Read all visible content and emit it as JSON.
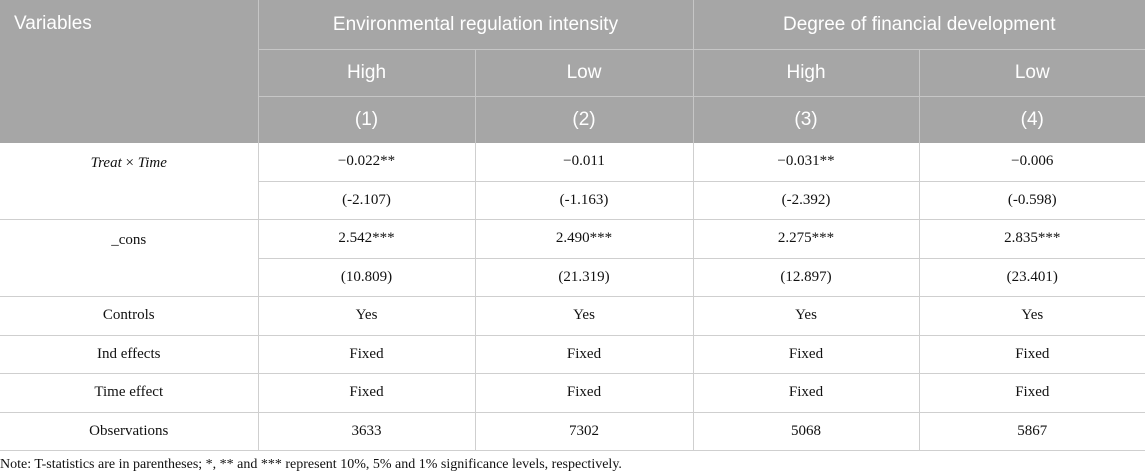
{
  "header": {
    "variables": "Variables",
    "group1": "Environmental regulation intensity",
    "group2": "Degree of financial development",
    "sub": [
      "High",
      "Low",
      "High",
      "Low"
    ],
    "cols": [
      "(1)",
      "(2)",
      "(3)",
      "(4)"
    ]
  },
  "rows": {
    "treat": {
      "label_a": "Treat",
      "label_x": " × ",
      "label_b": "Time",
      "coef": [
        "−0.022**",
        "−0.011",
        "−0.031**",
        "−0.006"
      ],
      "tstat": [
        "(-2.107)",
        "(-1.163)",
        "(-2.392)",
        "(-0.598)"
      ]
    },
    "cons": {
      "label": "_cons",
      "coef": [
        "2.542***",
        "2.490***",
        "2.275***",
        "2.835***"
      ],
      "tstat": [
        "(10.809)",
        "(21.319)",
        "(12.897)",
        "(23.401)"
      ]
    },
    "controls": {
      "label": "Controls",
      "values": [
        "Yes",
        "Yes",
        "Yes",
        "Yes"
      ]
    },
    "ind": {
      "label": "Ind effects",
      "values": [
        "Fixed",
        "Fixed",
        "Fixed",
        "Fixed"
      ]
    },
    "time": {
      "label": "Time effect",
      "values": [
        "Fixed",
        "Fixed",
        "Fixed",
        "Fixed"
      ]
    },
    "obs": {
      "label": "Observations",
      "values": [
        "3633",
        "7302",
        "5068",
        "5867"
      ]
    }
  },
  "note": "Note: T-statistics are in parentheses; *, ** and *** represent 10%, 5% and 1% significance levels, respectively."
}
